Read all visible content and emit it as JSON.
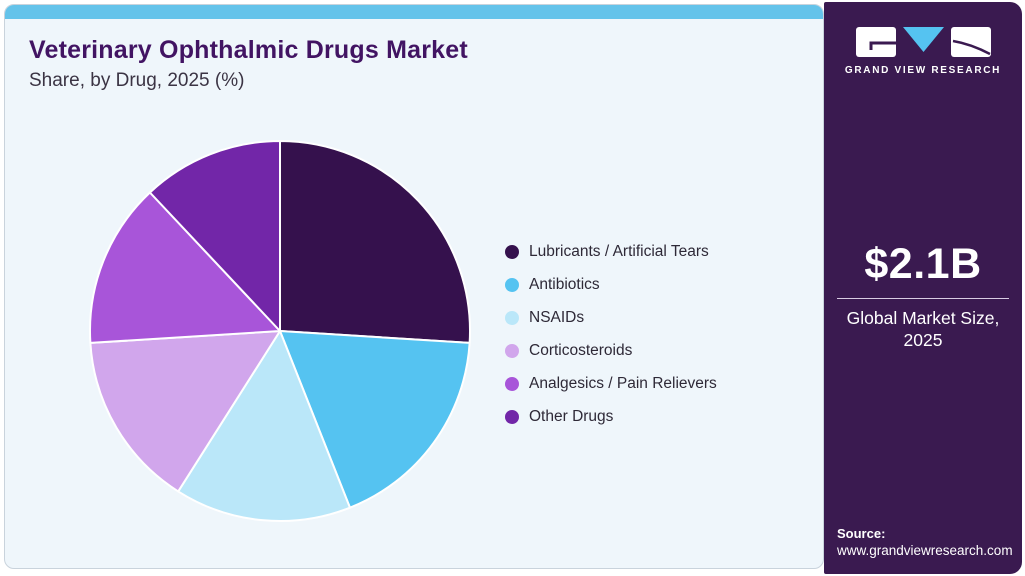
{
  "header": {
    "title": "Veterinary Ophthalmic Drugs Market",
    "subtitle": "Share, by Drug, 2025 (%)"
  },
  "chart_data": {
    "type": "pie",
    "title": "Veterinary Ophthalmic Drugs Market Share, by Drug, 2025 (%)",
    "unit": "percent",
    "start_angle_deg": 0,
    "direction": "clockwise",
    "legend_position": "right",
    "slices": [
      {
        "label": "Lubricants / Artificial Tears",
        "value": 26,
        "color": "#35114D"
      },
      {
        "label": "Antibiotics",
        "value": 18,
        "color": "#55C3F1"
      },
      {
        "label": "NSAIDs",
        "value": 15,
        "color": "#BAE7F9"
      },
      {
        "label": "Corticosteroids",
        "value": 15,
        "color": "#D1A6EC"
      },
      {
        "label": "Analgesics / Pain Relievers",
        "value": 14,
        "color": "#A855D9"
      },
      {
        "label": "Other Drugs",
        "value": 12,
        "color": "#7226A8"
      }
    ]
  },
  "sidebar": {
    "logo_text": "GRAND VIEW RESEARCH",
    "market_size_value": "$2.1B",
    "market_size_caption": "Global Market Size, 2025",
    "source_label": "Source:",
    "source_url": "www.grandviewresearch.com"
  },
  "colors": {
    "topbar_accent": "#64C3EA",
    "main_background": "#EFF6FB",
    "sidebar_background": "#3A1A50",
    "title_text": "#421463",
    "subtitle_text": "#3B3444",
    "legend_text": "#2E2937",
    "logo_triangle": "#55C3F1",
    "pie_slice_border": "#FFFFFF"
  }
}
